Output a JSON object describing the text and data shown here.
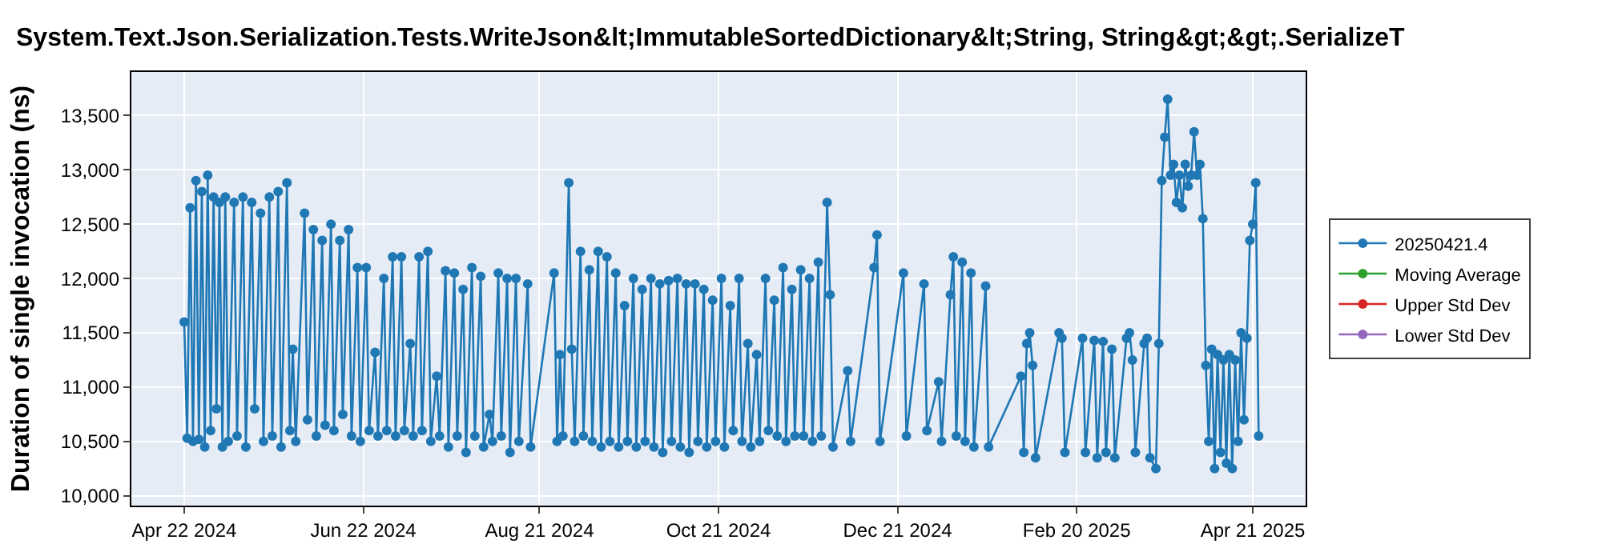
{
  "chart_data": {
    "type": "line",
    "title": "System.Text.Json.Serialization.Tests.WriteJson&lt;ImmutableSortedDictionary&lt;String, String&gt;&gt;.SerializeT",
    "ylabel": "Duration of single invocation (ns)",
    "x": [
      "2024-04-22",
      "2024-04-23",
      "2024-04-24",
      "2024-04-25",
      "2024-04-26",
      "2024-04-27",
      "2024-04-28",
      "2024-04-29",
      "2024-04-30",
      "2024-05-01",
      "2024-05-02",
      "2024-05-03",
      "2024-05-04",
      "2024-05-05",
      "2024-05-06",
      "2024-05-07",
      "2024-05-09",
      "2024-05-10",
      "2024-05-12",
      "2024-05-13",
      "2024-05-15",
      "2024-05-16",
      "2024-05-18",
      "2024-05-19",
      "2024-05-21",
      "2024-05-22",
      "2024-05-24",
      "2024-05-25",
      "2024-05-27",
      "2024-05-28",
      "2024-05-29",
      "2024-05-30",
      "2024-06-02",
      "2024-06-03",
      "2024-06-05",
      "2024-06-06",
      "2024-06-08",
      "2024-06-09",
      "2024-06-11",
      "2024-06-12",
      "2024-06-14",
      "2024-06-15",
      "2024-06-17",
      "2024-06-18",
      "2024-06-20",
      "2024-06-21",
      "2024-06-23",
      "2024-06-24",
      "2024-06-26",
      "2024-06-27",
      "2024-06-29",
      "2024-06-30",
      "2024-07-02",
      "2024-07-03",
      "2024-07-05",
      "2024-07-06",
      "2024-07-08",
      "2024-07-09",
      "2024-07-11",
      "2024-07-12",
      "2024-07-14",
      "2024-07-15",
      "2024-07-17",
      "2024-07-18",
      "2024-07-20",
      "2024-07-21",
      "2024-07-23",
      "2024-07-24",
      "2024-07-26",
      "2024-07-27",
      "2024-07-29",
      "2024-07-30",
      "2024-08-01",
      "2024-08-02",
      "2024-08-04",
      "2024-08-05",
      "2024-08-07",
      "2024-08-08",
      "2024-08-10",
      "2024-08-11",
      "2024-08-13",
      "2024-08-14",
      "2024-08-17",
      "2024-08-18",
      "2024-08-26",
      "2024-08-27",
      "2024-08-28",
      "2024-08-29",
      "2024-08-31",
      "2024-09-01",
      "2024-09-02",
      "2024-09-04",
      "2024-09-05",
      "2024-09-07",
      "2024-09-08",
      "2024-09-10",
      "2024-09-11",
      "2024-09-13",
      "2024-09-14",
      "2024-09-16",
      "2024-09-17",
      "2024-09-19",
      "2024-09-20",
      "2024-09-22",
      "2024-09-23",
      "2024-09-25",
      "2024-09-26",
      "2024-09-28",
      "2024-09-29",
      "2024-10-01",
      "2024-10-02",
      "2024-10-04",
      "2024-10-05",
      "2024-10-07",
      "2024-10-08",
      "2024-10-10",
      "2024-10-11",
      "2024-10-13",
      "2024-10-14",
      "2024-10-16",
      "2024-10-17",
      "2024-10-19",
      "2024-10-20",
      "2024-10-22",
      "2024-10-23",
      "2024-10-25",
      "2024-10-26",
      "2024-10-28",
      "2024-10-29",
      "2024-10-31",
      "2024-11-01",
      "2024-11-03",
      "2024-11-04",
      "2024-11-06",
      "2024-11-07",
      "2024-11-09",
      "2024-11-10",
      "2024-11-12",
      "2024-11-13",
      "2024-11-15",
      "2024-11-16",
      "2024-11-18",
      "2024-11-19",
      "2024-11-21",
      "2024-11-22",
      "2024-11-24",
      "2024-11-25",
      "2024-11-27",
      "2024-11-28",
      "2024-11-29",
      "2024-12-04",
      "2024-12-05",
      "2024-12-13",
      "2024-12-14",
      "2024-12-15",
      "2024-12-23",
      "2024-12-24",
      "2024-12-30",
      "2024-12-31",
      "2025-01-04",
      "2025-01-05",
      "2025-01-08",
      "2025-01-09",
      "2025-01-10",
      "2025-01-12",
      "2025-01-13",
      "2025-01-15",
      "2025-01-16",
      "2025-01-20",
      "2025-01-21",
      "2025-02-01",
      "2025-02-02",
      "2025-02-03",
      "2025-02-04",
      "2025-02-05",
      "2025-02-06",
      "2025-02-14",
      "2025-02-15",
      "2025-02-16",
      "2025-02-22",
      "2025-02-23",
      "2025-02-26",
      "2025-02-27",
      "2025-03-01",
      "2025-03-02",
      "2025-03-04",
      "2025-03-05",
      "2025-03-09",
      "2025-03-10",
      "2025-03-11",
      "2025-03-12",
      "2025-03-15",
      "2025-03-16",
      "2025-03-17",
      "2025-03-19",
      "2025-03-20",
      "2025-03-21",
      "2025-03-22",
      "2025-03-23",
      "2025-03-24",
      "2025-03-25",
      "2025-03-26",
      "2025-03-27",
      "2025-03-28",
      "2025-03-29",
      "2025-03-30",
      "2025-03-31",
      "2025-04-01",
      "2025-04-02",
      "2025-04-03",
      "2025-04-04",
      "2025-04-05",
      "2025-04-06",
      "2025-04-07",
      "2025-04-08",
      "2025-04-09",
      "2025-04-10",
      "2025-04-11",
      "2025-04-12",
      "2025-04-13",
      "2025-04-14",
      "2025-04-15",
      "2025-04-16",
      "2025-04-17",
      "2025-04-18",
      "2025-04-19",
      "2025-04-20",
      "2025-04-21",
      "2025-04-22",
      "2025-04-23"
    ],
    "series": [
      {
        "name": "20250421.4",
        "color": "#1f77b4",
        "values": [
          11600,
          10530,
          12650,
          10500,
          12900,
          10520,
          12800,
          10450,
          12950,
          10600,
          12750,
          10800,
          12700,
          10450,
          12750,
          10500,
          12700,
          10550,
          12750,
          10450,
          12700,
          10800,
          12600,
          10500,
          12750,
          10550,
          12800,
          10450,
          12880,
          10600,
          11350,
          10500,
          12600,
          10700,
          12450,
          10550,
          12350,
          10650,
          12500,
          10600,
          12350,
          10750,
          12450,
          10550,
          12100,
          10500,
          12100,
          10600,
          11320,
          10550,
          12000,
          10600,
          12200,
          10550,
          12200,
          10600,
          11400,
          10550,
          12200,
          10600,
          12250,
          10500,
          11100,
          10550,
          12070,
          10450,
          12050,
          10550,
          11900,
          10400,
          12100,
          10550,
          12020,
          10450,
          10750,
          10500,
          12050,
          10550,
          12000,
          10400,
          12000,
          10500,
          11950,
          10450,
          12050,
          10500,
          11300,
          10550,
          12880,
          11350,
          10500,
          12250,
          10550,
          12080,
          10500,
          12250,
          10450,
          12200,
          10500,
          12050,
          10450,
          11750,
          10500,
          12000,
          10450,
          11900,
          10500,
          12000,
          10450,
          11950,
          10400,
          11980,
          10500,
          12000,
          10450,
          11950,
          10400,
          11950,
          10500,
          11900,
          10450,
          11800,
          10500,
          12000,
          10450,
          11750,
          10600,
          12000,
          10500,
          11400,
          10450,
          11300,
          10500,
          12000,
          10600,
          11800,
          10550,
          12100,
          10500,
          11900,
          10550,
          12080,
          10550,
          12000,
          10500,
          12150,
          10550,
          12700,
          11850,
          10450,
          11150,
          10500,
          12100,
          12400,
          10500,
          12050,
          10550,
          11950,
          10600,
          11050,
          10500,
          11850,
          12200,
          10550,
          12150,
          10500,
          12050,
          10450,
          11930,
          10450,
          11100,
          10400,
          11400,
          11500,
          11200,
          10350,
          11500,
          11450,
          10400,
          11450,
          10400,
          11430,
          10350,
          11420,
          10400,
          11350,
          10350,
          11450,
          11500,
          11250,
          10400,
          11400,
          11450,
          10350,
          10250,
          11400,
          12900,
          13300,
          13650,
          12950,
          13050,
          12700,
          12950,
          12650,
          13050,
          12850,
          12950,
          13350,
          12950,
          13050,
          12550,
          11200,
          10500,
          11350,
          10250,
          11300,
          10400,
          11250,
          10300,
          11300,
          10250,
          11250,
          10500,
          11500,
          10700,
          11450,
          12350,
          12500,
          12880,
          10550
        ]
      },
      {
        "name": "Moving Average",
        "color": "#2ca02c",
        "values": [
          null,
          null,
          null,
          null,
          null,
          null,
          null,
          null,
          null,
          null,
          null,
          null,
          null,
          null,
          null,
          null,
          null,
          null,
          null,
          null,
          null,
          null,
          null,
          null,
          null,
          null,
          null,
          null,
          null,
          null,
          null,
          null,
          null,
          null,
          null,
          null,
          null,
          null,
          null,
          null,
          null,
          null,
          null,
          null,
          null,
          null,
          null,
          null,
          null,
          null,
          null,
          null,
          null,
          null,
          null,
          null,
          null,
          null,
          null,
          null,
          null,
          null,
          null,
          null,
          null,
          null,
          null,
          null,
          null,
          null,
          null,
          null,
          null,
          null,
          null,
          null,
          null,
          null,
          null,
          null,
          null,
          null,
          null,
          null,
          null,
          null,
          null,
          null,
          null,
          null,
          null,
          null,
          null,
          null,
          null,
          null,
          null,
          null,
          null,
          null,
          null,
          null,
          null,
          null,
          null,
          null,
          null,
          null,
          null,
          null,
          null,
          null,
          null,
          null,
          null,
          null,
          null,
          null,
          null,
          null,
          null,
          null,
          null,
          null,
          null,
          null,
          null,
          null,
          null,
          null,
          null,
          null,
          null,
          null,
          null,
          null,
          null,
          null,
          null,
          null,
          null,
          null,
          null,
          null,
          null,
          null,
          null,
          null,
          null,
          null,
          null,
          null,
          null,
          null,
          null,
          null,
          null,
          null,
          null,
          null,
          null,
          null,
          null,
          null,
          null,
          null,
          null,
          null,
          null,
          null,
          null,
          null,
          null,
          null,
          null,
          null,
          null,
          null,
          null,
          null,
          null,
          null,
          null,
          null,
          null,
          null,
          null,
          null,
          null,
          null,
          null,
          null,
          null,
          null,
          null,
          null,
          null,
          null,
          null,
          null,
          null,
          null,
          null,
          null,
          null,
          null,
          null,
          null,
          null,
          null,
          null,
          null,
          null,
          null,
          null,
          null,
          null,
          null,
          null,
          null,
          null,
          null,
          null,
          null,
          null,
          null,
          null,
          null,
          null,
          null
        ]
      },
      {
        "name": "Upper Std Dev",
        "color": "#d62728",
        "values": [
          null,
          null,
          null,
          null,
          null,
          null,
          null,
          null,
          null,
          null,
          null,
          null,
          null,
          null,
          null,
          null,
          null,
          null,
          null,
          null,
          null,
          null,
          null,
          null,
          null,
          null,
          null,
          null,
          null,
          null,
          null,
          null,
          null,
          null,
          null,
          null,
          null,
          null,
          null,
          null,
          null,
          null,
          null,
          null,
          null,
          null,
          null,
          null,
          null,
          null,
          null,
          null,
          null,
          null,
          null,
          null,
          null,
          null,
          null,
          null,
          null,
          null,
          null,
          null,
          null,
          null,
          null,
          null,
          null,
          null,
          null,
          null,
          null,
          null,
          null,
          null,
          null,
          null,
          null,
          null,
          null,
          null,
          null,
          null,
          null,
          null,
          null,
          null,
          null,
          null,
          null,
          null,
          null,
          null,
          null,
          null,
          null,
          null,
          null,
          null,
          null,
          null,
          null,
          null,
          null,
          null,
          null,
          null,
          null,
          null,
          null,
          null,
          null,
          null,
          null,
          null,
          null,
          null,
          null,
          null,
          null,
          null,
          null,
          null,
          null,
          null,
          null,
          null,
          null,
          null,
          null,
          null,
          null,
          null,
          null,
          null,
          null,
          null,
          null,
          null,
          null,
          null,
          null,
          null,
          null,
          null,
          null,
          null,
          null,
          null,
          null,
          null,
          null,
          null,
          null,
          null,
          null,
          null,
          null,
          null,
          null,
          null,
          null,
          null,
          null,
          null,
          null,
          null,
          null,
          null,
          null,
          null,
          null,
          null,
          null,
          null,
          null,
          null,
          null,
          null,
          null,
          null,
          null,
          null,
          null,
          null,
          null,
          null,
          null,
          null,
          null,
          null,
          null,
          null,
          null,
          null,
          null,
          null,
          null,
          null,
          null,
          null,
          null,
          null,
          null,
          null,
          null,
          null,
          null,
          null,
          null,
          null,
          null,
          null,
          null,
          null,
          null,
          null,
          null,
          null,
          null,
          null,
          null,
          null,
          null,
          null,
          null,
          null,
          null,
          null
        ]
      },
      {
        "name": "Lower Std Dev",
        "color": "#9467bd",
        "values": [
          null,
          null,
          null,
          null,
          null,
          null,
          null,
          null,
          null,
          null,
          null,
          null,
          null,
          null,
          null,
          null,
          null,
          null,
          null,
          null,
          null,
          null,
          null,
          null,
          null,
          null,
          null,
          null,
          null,
          null,
          null,
          null,
          null,
          null,
          null,
          null,
          null,
          null,
          null,
          null,
          null,
          null,
          null,
          null,
          null,
          null,
          null,
          null,
          null,
          null,
          null,
          null,
          null,
          null,
          null,
          null,
          null,
          null,
          null,
          null,
          null,
          null,
          null,
          null,
          null,
          null,
          null,
          null,
          null,
          null,
          null,
          null,
          null,
          null,
          null,
          null,
          null,
          null,
          null,
          null,
          null,
          null,
          null,
          null,
          null,
          null,
          null,
          null,
          null,
          null,
          null,
          null,
          null,
          null,
          null,
          null,
          null,
          null,
          null,
          null,
          null,
          null,
          null,
          null,
          null,
          null,
          null,
          null,
          null,
          null,
          null,
          null,
          null,
          null,
          null,
          null,
          null,
          null,
          null,
          null,
          null,
          null,
          null,
          null,
          null,
          null,
          null,
          null,
          null,
          null,
          null,
          null,
          null,
          null,
          null,
          null,
          null,
          null,
          null,
          null,
          null,
          null,
          null,
          null,
          null,
          null,
          null,
          null,
          null,
          null,
          null,
          null,
          null,
          null,
          null,
          null,
          null,
          null,
          null,
          null,
          null,
          null,
          null,
          null,
          null,
          null,
          null,
          null,
          null,
          null,
          null,
          null,
          null,
          null,
          null,
          null,
          null,
          null,
          null,
          null,
          null,
          null,
          null,
          null,
          null,
          null,
          null,
          null,
          null,
          null,
          null,
          null,
          null,
          null,
          null,
          null,
          null,
          null,
          null,
          null,
          null,
          null,
          null,
          null,
          null,
          null,
          null,
          null,
          null,
          null,
          null,
          null,
          null,
          null,
          null,
          null,
          null,
          null,
          null,
          null,
          null,
          null,
          null,
          null,
          null,
          null,
          null,
          null,
          null,
          null
        ]
      }
    ],
    "xlim": [
      "2024-04-04",
      "2025-05-09"
    ],
    "xticks": [
      {
        "value": "2024-04-22",
        "label": "Apr 22 2024"
      },
      {
        "value": "2024-06-22",
        "label": "Jun 22 2024"
      },
      {
        "value": "2024-08-21",
        "label": "Aug 21 2024"
      },
      {
        "value": "2024-10-21",
        "label": "Oct 21 2024"
      },
      {
        "value": "2024-12-21",
        "label": "Dec 21 2024"
      },
      {
        "value": "2025-02-20",
        "label": "Feb 20 2025"
      },
      {
        "value": "2025-04-21",
        "label": "Apr 21 2025"
      }
    ],
    "ylim": [
      9910,
      13900
    ],
    "yticks": [
      {
        "value": 10000,
        "label": "10,000"
      },
      {
        "value": 10500,
        "label": "10,500"
      },
      {
        "value": 11000,
        "label": "11,000"
      },
      {
        "value": 11500,
        "label": "11,500"
      },
      {
        "value": 12000,
        "label": "12,000"
      },
      {
        "value": 12500,
        "label": "12,500"
      },
      {
        "value": 13000,
        "label": "13,000"
      },
      {
        "value": 13500,
        "label": "13,500"
      }
    ],
    "grid": true,
    "legend": "right",
    "marker": "circle",
    "line_style": "solid"
  }
}
